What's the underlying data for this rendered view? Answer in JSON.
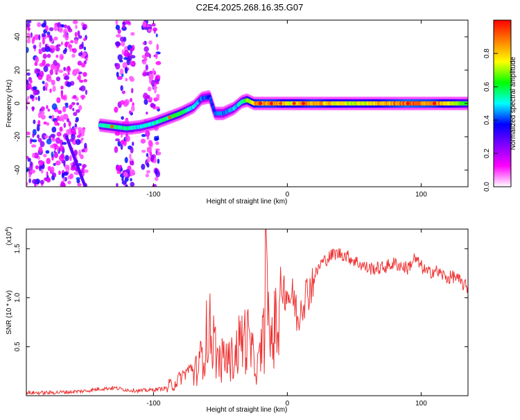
{
  "page_title": "C2E4.2025.268.16.35.G07",
  "chart_data": [
    {
      "type": "heatmap",
      "title": "C2E4.2025.268.16.35.G07",
      "xlabel": "Height of straight line (km)",
      "ylabel": "Frequency (Hz)",
      "xlim": [
        -195,
        135
      ],
      "ylim": [
        -50,
        50
      ],
      "x_ticks": [
        -100,
        0,
        100
      ],
      "y_ticks": [
        -40,
        -20,
        0,
        20,
        40
      ],
      "x_tick_labels": [
        "-100",
        "0",
        "100"
      ],
      "y_tick_labels": [
        "-40",
        "-20",
        "0",
        "20",
        "40"
      ],
      "colorbar": {
        "label": "Normalized spectral amplitude",
        "range": [
          0,
          1
        ],
        "ticks": [
          0.0,
          0.2,
          0.4,
          0.6,
          0.8
        ],
        "tick_labels": [
          "0.0",
          "0.2",
          "0.4",
          "0.6",
          "0.8"
        ],
        "colors": [
          "#ffffff",
          "#ff00ff",
          "#8000ff",
          "#0000ff",
          "#00ffff",
          "#00ff00",
          "#ffff00",
          "#ff8000",
          "#ff0000"
        ]
      },
      "ridge": {
        "x": [
          -140,
          -130,
          -120,
          -110,
          -100,
          -90,
          -80,
          -70,
          -64,
          -58,
          -54,
          -48,
          -40,
          -34,
          -30,
          -25,
          -20,
          -10,
          0,
          20,
          50,
          90,
          110,
          135
        ],
        "frequency": [
          -13,
          -14,
          -15,
          -14,
          -12,
          -9,
          -6,
          -2,
          3,
          4,
          -6,
          -6,
          -3,
          1,
          2,
          0,
          0,
          0,
          0,
          0,
          0,
          0,
          0,
          0
        ],
        "amplitude": [
          0.55,
          0.6,
          0.6,
          0.5,
          0.55,
          0.6,
          0.65,
          0.5,
          0.45,
          0.4,
          0.45,
          0.45,
          0.5,
          0.55,
          0.7,
          0.85,
          0.9,
          0.9,
          0.8,
          0.9,
          0.75,
          0.95,
          0.9,
          0.65
        ]
      },
      "noise_regions": [
        [
          -195,
          -150
        ],
        [
          -128,
          -115
        ],
        [
          -108,
          -96
        ]
      ]
    },
    {
      "type": "line",
      "xlabel": "Height of straight line (km)",
      "ylabel": "SNR (10 * v/v)",
      "y_scale_label": "(x10",
      "y_scale_exp": "4",
      "y_scale_close": ")",
      "xlim": [
        -195,
        135
      ],
      "ylim": [
        0,
        1.7
      ],
      "x_ticks": [
        -100,
        0,
        100
      ],
      "y_ticks": [
        0.5,
        1.0,
        1.5
      ],
      "x_tick_labels": [
        "-100",
        "0",
        "100"
      ],
      "y_tick_labels": [
        "0.5",
        "1.0",
        "1.5"
      ],
      "color": "#ee3333",
      "series": [
        {
          "name": "SNR",
          "x": [
            -195,
            -180,
            -160,
            -150,
            -140,
            -130,
            -120,
            -110,
            -100,
            -90,
            -85,
            -80,
            -75,
            -70,
            -65,
            -60,
            -57,
            -55,
            -52,
            -50,
            -47,
            -45,
            -40,
            -35,
            -30,
            -28,
            -25,
            -22,
            -20,
            -17,
            -16,
            -14,
            -12,
            -10,
            -5,
            0,
            3,
            5,
            8,
            10,
            15,
            20,
            25,
            30,
            35,
            40,
            45,
            50,
            60,
            70,
            80,
            90,
            95,
            100,
            105,
            110,
            120,
            125,
            130,
            135
          ],
          "y": [
            0.03,
            0.03,
            0.04,
            0.05,
            0.07,
            0.08,
            0.06,
            0.05,
            0.06,
            0.08,
            0.12,
            0.18,
            0.25,
            0.3,
            0.5,
            0.9,
            0.95,
            0.8,
            0.55,
            0.45,
            0.6,
            0.5,
            0.55,
            0.8,
            0.85,
            0.7,
            0.5,
            0.4,
            0.6,
            0.9,
            1.7,
            0.9,
            0.85,
            0.95,
            1.15,
            1.05,
            1.0,
            1.0,
            0.75,
            0.95,
            1.05,
            1.2,
            1.35,
            1.4,
            1.45,
            1.45,
            1.42,
            1.38,
            1.3,
            1.3,
            1.35,
            1.3,
            1.4,
            1.32,
            1.25,
            1.28,
            1.2,
            1.22,
            1.15,
            1.1
          ]
        }
      ]
    }
  ]
}
